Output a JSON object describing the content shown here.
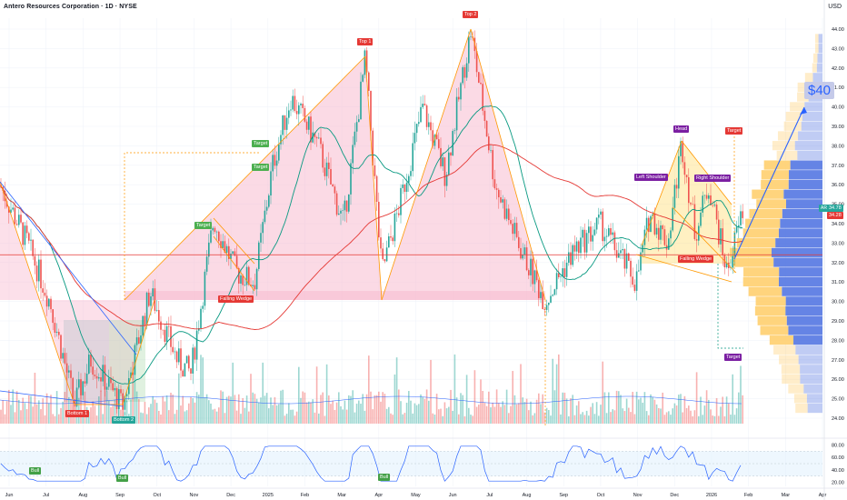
{
  "header": {
    "title": "Antero Resources Corporation · 1D · NYSE",
    "currency": "USD"
  },
  "price_axis": {
    "ticks": [
      "44.00",
      "43.00",
      "42.00",
      "41.00",
      "40.00",
      "39.00",
      "38.00",
      "37.00",
      "36.00",
      "35.00",
      "34.00",
      "33.00",
      "32.00",
      "31.00",
      "30.00",
      "29.00",
      "28.00",
      "27.00",
      "26.00",
      "25.00",
      "24.00"
    ],
    "last_price": "34.78",
    "ma_value": "34.28",
    "ticker": "AR"
  },
  "time_axis": {
    "labels": [
      "Jun",
      "Jul",
      "Aug",
      "Sep",
      "Oct",
      "Nov",
      "Dec",
      "2025",
      "Feb",
      "Mar",
      "Apr",
      "May",
      "Jun",
      "Jul",
      "Aug",
      "Sep",
      "Oct",
      "Nov",
      "Dec",
      "2026",
      "Feb",
      "Mar",
      "Apr"
    ]
  },
  "rsi_axis": {
    "ticks": [
      "80.00",
      "60.00",
      "40.00",
      "20.00"
    ]
  },
  "annotations": {
    "top1": "Top 1",
    "top2": "Top 2",
    "head": "Head",
    "left_shoulder": "Left Shoulder",
    "right_shoulder": "Right Shoulder",
    "target": "Target",
    "falling_wedge": "Falling Wedge",
    "bottom1": "Bottom 1",
    "bottom2": "Bottom 2",
    "bull": "Bull",
    "big_target": "$40"
  },
  "colors": {
    "up": "#26a69a",
    "down": "#ef5350",
    "ma_green": "#089981",
    "ma_red": "#e53935",
    "rsi": "#2962ff",
    "pattern_pink": "#f8bbd0",
    "orange": "#ff9800",
    "vp_yellow": "#ffcc66",
    "vp_blue": "#4a6ee0"
  },
  "chart_data": {
    "type": "candlestick",
    "symbol": "AR",
    "exchange": "NYSE",
    "interval": "1D",
    "x_range": [
      "2024-06",
      "2026-04"
    ],
    "ylim": [
      24,
      44
    ],
    "key_points": [
      {
        "label": "Bottom 1",
        "date": "2024-08",
        "price": 24.6
      },
      {
        "label": "Bottom 2",
        "date": "2024-09",
        "price": 24.5
      },
      {
        "label": "Top 1",
        "date": "2025-04",
        "price": 42.6
      },
      {
        "label": "Top 2",
        "date": "2025-07",
        "price": 43.9
      },
      {
        "label": "Head",
        "date": "2025-12",
        "price": 38.2
      },
      {
        "label": "Last",
        "date": "2026-01",
        "price": 34.78
      }
    ],
    "horizontal_levels": [
      32.4,
      30.0
    ],
    "rsi_range": [
      20,
      80
    ]
  }
}
